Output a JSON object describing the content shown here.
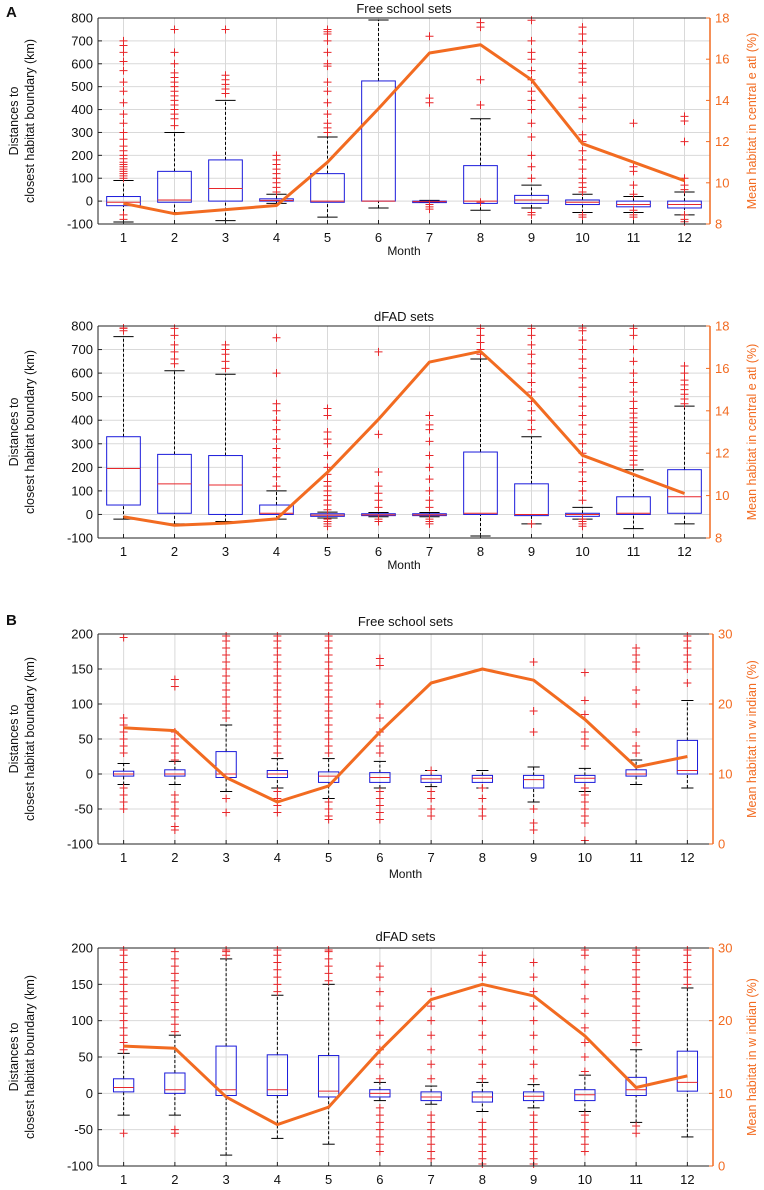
{
  "figure": {
    "panel_labels": [
      "A",
      "B"
    ]
  },
  "colors": {
    "box": "#1a1adb",
    "median": "#e8272b",
    "outlier": "#e8272b",
    "line": "#f26b21",
    "axis": "#222222",
    "grid": "#d9d9d9",
    "right_axis": "#f26b21"
  },
  "chart_data": [
    {
      "type": "boxplot",
      "panel": "A",
      "title": "Free school sets",
      "xlabel": "Month",
      "ylabel": [
        "Distances to",
        "closest habitat boundary (km)"
      ],
      "y2label": "Mean habitat in central e atl (%)",
      "categories": [
        "1",
        "2",
        "3",
        "4",
        "5",
        "6",
        "7",
        "8",
        "9",
        "10",
        "11",
        "12"
      ],
      "ylim": [
        -100,
        800
      ],
      "yticks": [
        -100,
        0,
        100,
        200,
        300,
        400,
        500,
        600,
        700,
        800
      ],
      "y2lim": [
        8,
        18
      ],
      "y2ticks": [
        8,
        10,
        12,
        14,
        16,
        18
      ],
      "boxes": [
        {
          "wlo": -95,
          "q1": -20,
          "med": -5,
          "q3": 20,
          "whi": 90
        },
        {
          "wlo": -50,
          "q1": -5,
          "med": 5,
          "q3": 130,
          "whi": 300
        },
        {
          "wlo": -85,
          "q1": 0,
          "med": 55,
          "q3": 180,
          "whi": 440
        },
        {
          "wlo": -10,
          "q1": 0,
          "med": 3,
          "q3": 10,
          "whi": 30
        },
        {
          "wlo": -70,
          "q1": -5,
          "med": 0,
          "q3": 120,
          "whi": 280
        },
        {
          "wlo": -30,
          "q1": 0,
          "med": 0,
          "q3": 525,
          "whi": 800
        },
        {
          "wlo": -5,
          "q1": -3,
          "med": -2,
          "q3": 0,
          "whi": 3
        },
        {
          "wlo": -40,
          "q1": -10,
          "med": 0,
          "q3": 155,
          "whi": 360
        },
        {
          "wlo": -30,
          "q1": -10,
          "med": 5,
          "q3": 25,
          "whi": 70
        },
        {
          "wlo": -50,
          "q1": -15,
          "med": -5,
          "q3": 5,
          "whi": 30
        },
        {
          "wlo": -50,
          "q1": -25,
          "med": -15,
          "q3": 0,
          "whi": 20
        },
        {
          "wlo": -60,
          "q1": -30,
          "med": -15,
          "q3": 0,
          "whi": 40
        }
      ],
      "outliers": [
        [
          100,
          110,
          120,
          130,
          140,
          150,
          160,
          170,
          185,
          200,
          220,
          240,
          270,
          300,
          340,
          380,
          430,
          480,
          520,
          570,
          610,
          650,
          680,
          700,
          -60,
          -80
        ],
        [
          330,
          360,
          380,
          400,
          420,
          440,
          460,
          480,
          500,
          520,
          540,
          560,
          600,
          650,
          750
        ],
        [
          470,
          490,
          510,
          530,
          550,
          750
        ],
        [
          40,
          60,
          80,
          100,
          120,
          140,
          160,
          180,
          200
        ],
        [
          300,
          320,
          340,
          380,
          430,
          480,
          520,
          590,
          600,
          650,
          700,
          730,
          740,
          750
        ],
        [],
        [
          -15,
          -25,
          -35,
          430,
          450,
          720
        ],
        [
          -5,
          420,
          530,
          760,
          780
        ],
        [
          100,
          150,
          200,
          280,
          340,
          400,
          440,
          480,
          530,
          570,
          620,
          650,
          700,
          790,
          -50,
          -60
        ],
        [
          40,
          60,
          80,
          100,
          140,
          180,
          220,
          260,
          290,
          360,
          410,
          450,
          520,
          560,
          580,
          600,
          650,
          700,
          730,
          760,
          -60,
          -70
        ],
        [
          30,
          70,
          130,
          150,
          340,
          -40,
          -60,
          -70
        ],
        [
          50,
          70,
          100,
          260,
          350,
          370,
          -60,
          -80,
          -90
        ]
      ],
      "line": [
        9.0,
        8.5,
        8.7,
        8.9,
        11.0,
        13.6,
        16.3,
        16.7,
        15.0,
        11.9,
        11.0,
        10.1
      ]
    },
    {
      "type": "boxplot",
      "panel": "A",
      "title": "dFAD sets",
      "xlabel": "Month",
      "ylabel": [
        "Distances to",
        "closest habitat boundary (km)"
      ],
      "y2label": "Mean habitat in central e atl (%)",
      "categories": [
        "1",
        "2",
        "3",
        "4",
        "5",
        "6",
        "7",
        "8",
        "9",
        "10",
        "11",
        "12"
      ],
      "ylim": [
        -100,
        800
      ],
      "yticks": [
        -100,
        0,
        100,
        200,
        300,
        400,
        500,
        600,
        700,
        800
      ],
      "y2lim": [
        8,
        18
      ],
      "y2ticks": [
        8,
        10,
        12,
        14,
        16,
        18
      ],
      "boxes": [
        {
          "wlo": -20,
          "q1": 40,
          "med": 195,
          "q3": 330,
          "whi": 755
        },
        {
          "wlo": -40,
          "q1": 5,
          "med": 130,
          "q3": 255,
          "whi": 610
        },
        {
          "wlo": -30,
          "q1": 0,
          "med": 125,
          "q3": 250,
          "whi": 595
        },
        {
          "wlo": -20,
          "q1": 0,
          "med": 5,
          "q3": 40,
          "whi": 100
        },
        {
          "wlo": -15,
          "q1": -8,
          "med": -3,
          "q3": 3,
          "whi": 10
        },
        {
          "wlo": -10,
          "q1": -5,
          "med": -2,
          "q3": 3,
          "whi": 8
        },
        {
          "wlo": -10,
          "q1": -5,
          "med": -2,
          "q3": 3,
          "whi": 8
        },
        {
          "wlo": -95,
          "q1": 0,
          "med": 5,
          "q3": 265,
          "whi": 660
        },
        {
          "wlo": -40,
          "q1": -5,
          "med": 0,
          "q3": 130,
          "whi": 330
        },
        {
          "wlo": -20,
          "q1": -8,
          "med": 0,
          "q3": 5,
          "whi": 30
        },
        {
          "wlo": -60,
          "q1": 0,
          "med": 5,
          "q3": 75,
          "whi": 190
        },
        {
          "wlo": -40,
          "q1": 5,
          "med": 75,
          "q3": 190,
          "whi": 460
        }
      ],
      "outliers": [
        [
          780,
          790,
          800
        ],
        [
          640,
          660,
          690,
          720,
          760,
          790
        ],
        [
          620,
          650,
          680,
          700,
          720
        ],
        [
          120,
          160,
          200,
          240,
          280,
          320,
          360,
          400,
          440,
          470,
          600,
          750
        ],
        [
          -20,
          -30,
          -40,
          -50,
          20,
          40,
          60,
          80,
          100,
          120,
          140,
          170,
          200,
          250,
          300,
          320,
          350,
          420,
          450
        ],
        [
          -20,
          -30,
          30,
          60,
          90,
          120,
          180,
          340,
          690
        ],
        [
          -20,
          -30,
          -40,
          30,
          60,
          100,
          150,
          200,
          250,
          310,
          360,
          380,
          420
        ],
        [
          680,
          700,
          730,
          760,
          790
        ],
        [
          -40,
          360,
          400,
          440,
          480,
          520,
          560,
          600,
          640,
          680,
          720,
          760,
          790
        ],
        [
          -20,
          -30,
          -40,
          -50,
          60,
          100,
          140,
          180,
          220,
          260,
          300,
          340,
          380,
          420,
          460,
          500,
          540,
          580,
          620,
          660,
          700,
          740,
          780,
          800
        ],
        [
          210,
          230,
          250,
          270,
          290,
          310,
          330,
          350,
          370,
          390,
          410,
          430,
          450,
          480,
          520,
          560,
          600,
          650,
          700,
          760,
          790
        ],
        [
          470,
          490,
          510,
          530,
          550,
          570,
          600,
          630
        ]
      ],
      "line": [
        9.0,
        8.6,
        8.7,
        8.9,
        11.1,
        13.6,
        16.3,
        16.8,
        14.6,
        11.9,
        11.0,
        10.1
      ]
    },
    {
      "type": "boxplot",
      "panel": "B",
      "title": "Free school sets",
      "xlabel": "Month",
      "ylabel": [
        "Distances to",
        "closest habitat boundary (km)"
      ],
      "y2label": "Mean habitat in w indian (%)",
      "categories": [
        "1",
        "2",
        "3",
        "4",
        "5",
        "6",
        "7",
        "8",
        "9",
        "10",
        "11",
        "12"
      ],
      "ylim": [
        -100,
        200
      ],
      "yticks": [
        -100,
        -50,
        0,
        50,
        100,
        150,
        200
      ],
      "y2lim": [
        0,
        30
      ],
      "y2ticks": [
        0,
        10,
        20,
        30
      ],
      "boxes": [
        {
          "wlo": -15,
          "q1": -3,
          "med": 0,
          "q3": 4,
          "whi": 15
        },
        {
          "wlo": -15,
          "q1": -3,
          "med": 0,
          "q3": 6,
          "whi": 18
        },
        {
          "wlo": -25,
          "q1": -5,
          "med": 0,
          "q3": 32,
          "whi": 70
        },
        {
          "wlo": -20,
          "q1": -5,
          "med": 0,
          "q3": 5,
          "whi": 22
        },
        {
          "wlo": -35,
          "q1": -12,
          "med": -3,
          "q3": 3,
          "whi": 22
        },
        {
          "wlo": -20,
          "q1": -12,
          "med": -5,
          "q3": 2,
          "whi": 18
        },
        {
          "wlo": -18,
          "q1": -12,
          "med": -7,
          "q3": -2,
          "whi": 5
        },
        {
          "wlo": -20,
          "q1": -12,
          "med": -6,
          "q3": -2,
          "whi": 5
        },
        {
          "wlo": -40,
          "q1": -20,
          "med": -8,
          "q3": -2,
          "whi": 10
        },
        {
          "wlo": -25,
          "q1": -12,
          "med": -6,
          "q3": -2,
          "whi": 8
        },
        {
          "wlo": -15,
          "q1": -3,
          "med": 0,
          "q3": 6,
          "whi": 20
        },
        {
          "wlo": -20,
          "q1": 0,
          "med": 5,
          "q3": 48,
          "whi": 105
        }
      ],
      "outliers": [
        [
          195,
          80,
          70,
          60,
          50,
          40,
          30,
          -20,
          -30,
          -40,
          -50
        ],
        [
          135,
          125,
          60,
          50,
          40,
          30,
          20,
          -30,
          -40,
          -50,
          -60,
          -75,
          -80
        ],
        [
          100,
          110,
          120,
          130,
          140,
          150,
          160,
          170,
          180,
          190,
          200,
          90,
          80,
          -35,
          -55
        ],
        [
          30,
          40,
          50,
          60,
          70,
          80,
          90,
          100,
          110,
          120,
          130,
          140,
          150,
          160,
          170,
          180,
          190,
          200,
          -25,
          -35,
          -45,
          -55
        ],
        [
          30,
          40,
          50,
          60,
          70,
          80,
          90,
          100,
          110,
          120,
          130,
          140,
          150,
          160,
          170,
          180,
          190,
          200,
          -40,
          -50,
          -60,
          -65
        ],
        [
          165,
          155,
          100,
          80,
          60,
          40,
          30,
          -25,
          -35,
          -45,
          -55,
          -65
        ],
        [
          -25,
          -35,
          -50,
          -60,
          5
        ],
        [
          -20,
          -35,
          -50,
          -60
        ],
        [
          160,
          90,
          60,
          -50,
          -70,
          -80
        ],
        [
          145,
          105,
          85,
          60,
          50,
          40,
          -20,
          -30,
          -40,
          -50,
          -60,
          -70,
          -95
        ],
        [
          180,
          170,
          160,
          150,
          120,
          100,
          60,
          40,
          30
        ],
        [
          200,
          190,
          180,
          170,
          160,
          150,
          130
        ]
      ],
      "line": [
        16.6,
        16.2,
        9.5,
        6.0,
        8.3,
        16.0,
        23.0,
        25.0,
        23.4,
        17.8,
        11.0,
        12.5
      ]
    },
    {
      "type": "boxplot",
      "panel": "B",
      "title": "dFAD sets",
      "xlabel": "",
      "ylabel": [
        "Distances to",
        "closest habitat boundary (km)"
      ],
      "y2label": "Mean habitat in w indian (%)",
      "categories": [
        "1",
        "2",
        "3",
        "4",
        "5",
        "6",
        "7",
        "8",
        "9",
        "10",
        "11",
        "12"
      ],
      "ylim": [
        -100,
        200
      ],
      "yticks": [
        -100,
        -50,
        0,
        50,
        100,
        150,
        200
      ],
      "y2lim": [
        0,
        30
      ],
      "y2ticks": [
        0,
        10,
        20,
        30
      ],
      "boxes": [
        {
          "wlo": -30,
          "q1": 2,
          "med": 8,
          "q3": 20,
          "whi": 55
        },
        {
          "wlo": -30,
          "q1": 0,
          "med": 5,
          "q3": 28,
          "whi": 80
        },
        {
          "wlo": -85,
          "q1": -3,
          "med": 5,
          "q3": 65,
          "whi": 185
        },
        {
          "wlo": -62,
          "q1": -3,
          "med": 5,
          "q3": 53,
          "whi": 135
        },
        {
          "wlo": -70,
          "q1": -5,
          "med": 3,
          "q3": 52,
          "whi": 150
        },
        {
          "wlo": -10,
          "q1": -5,
          "med": 0,
          "q3": 5,
          "whi": 15
        },
        {
          "wlo": -15,
          "q1": -10,
          "med": -5,
          "q3": 2,
          "whi": 10
        },
        {
          "wlo": -25,
          "q1": -12,
          "med": -5,
          "q3": 2,
          "whi": 15
        },
        {
          "wlo": -20,
          "q1": -10,
          "med": -4,
          "q3": 2,
          "whi": 12
        },
        {
          "wlo": -25,
          "q1": -10,
          "med": -2,
          "q3": 5,
          "whi": 25
        },
        {
          "wlo": -40,
          "q1": -3,
          "med": 5,
          "q3": 22,
          "whi": 60
        },
        {
          "wlo": -60,
          "q1": 3,
          "med": 15,
          "q3": 58,
          "whi": 145
        }
      ],
      "outliers": [
        [
          60,
          70,
          80,
          90,
          100,
          110,
          120,
          130,
          140,
          150,
          160,
          170,
          180,
          190,
          200,
          -55
        ],
        [
          85,
          95,
          105,
          115,
          125,
          135,
          145,
          155,
          165,
          175,
          185,
          195,
          -50,
          -55
        ],
        [
          190,
          195,
          200
        ],
        [
          140,
          150,
          160,
          170,
          180,
          190,
          200
        ],
        [
          155,
          165,
          175,
          185,
          195,
          200
        ],
        [
          20,
          40,
          60,
          80,
          100,
          120,
          140,
          160,
          175,
          -20,
          -30,
          -40,
          -50,
          -60,
          -70,
          -80
        ],
        [
          20,
          40,
          60,
          80,
          100,
          120,
          140,
          -30,
          -40,
          -50,
          -60,
          -70,
          -80,
          -90
        ],
        [
          20,
          40,
          60,
          80,
          100,
          120,
          140,
          160,
          180,
          190,
          -40,
          -50,
          -60,
          -70,
          -80,
          -90,
          -100
        ],
        [
          20,
          40,
          60,
          80,
          100,
          120,
          140,
          160,
          180,
          -30,
          -40,
          -50,
          -60,
          -70,
          -80,
          -90,
          -100
        ],
        [
          30,
          50,
          70,
          90,
          110,
          130,
          150,
          170,
          190,
          200,
          -30,
          -40,
          -50,
          -60,
          -70,
          -80
        ],
        [
          70,
          80,
          90,
          100,
          110,
          120,
          130,
          140,
          150,
          160,
          170,
          180,
          190,
          200,
          -45,
          -55
        ],
        [
          150,
          160,
          170,
          180,
          190,
          200
        ]
      ],
      "line": [
        16.5,
        16.2,
        9.5,
        5.7,
        8.1,
        15.9,
        22.9,
        25.0,
        23.4,
        17.9,
        10.8,
        12.4
      ]
    }
  ]
}
